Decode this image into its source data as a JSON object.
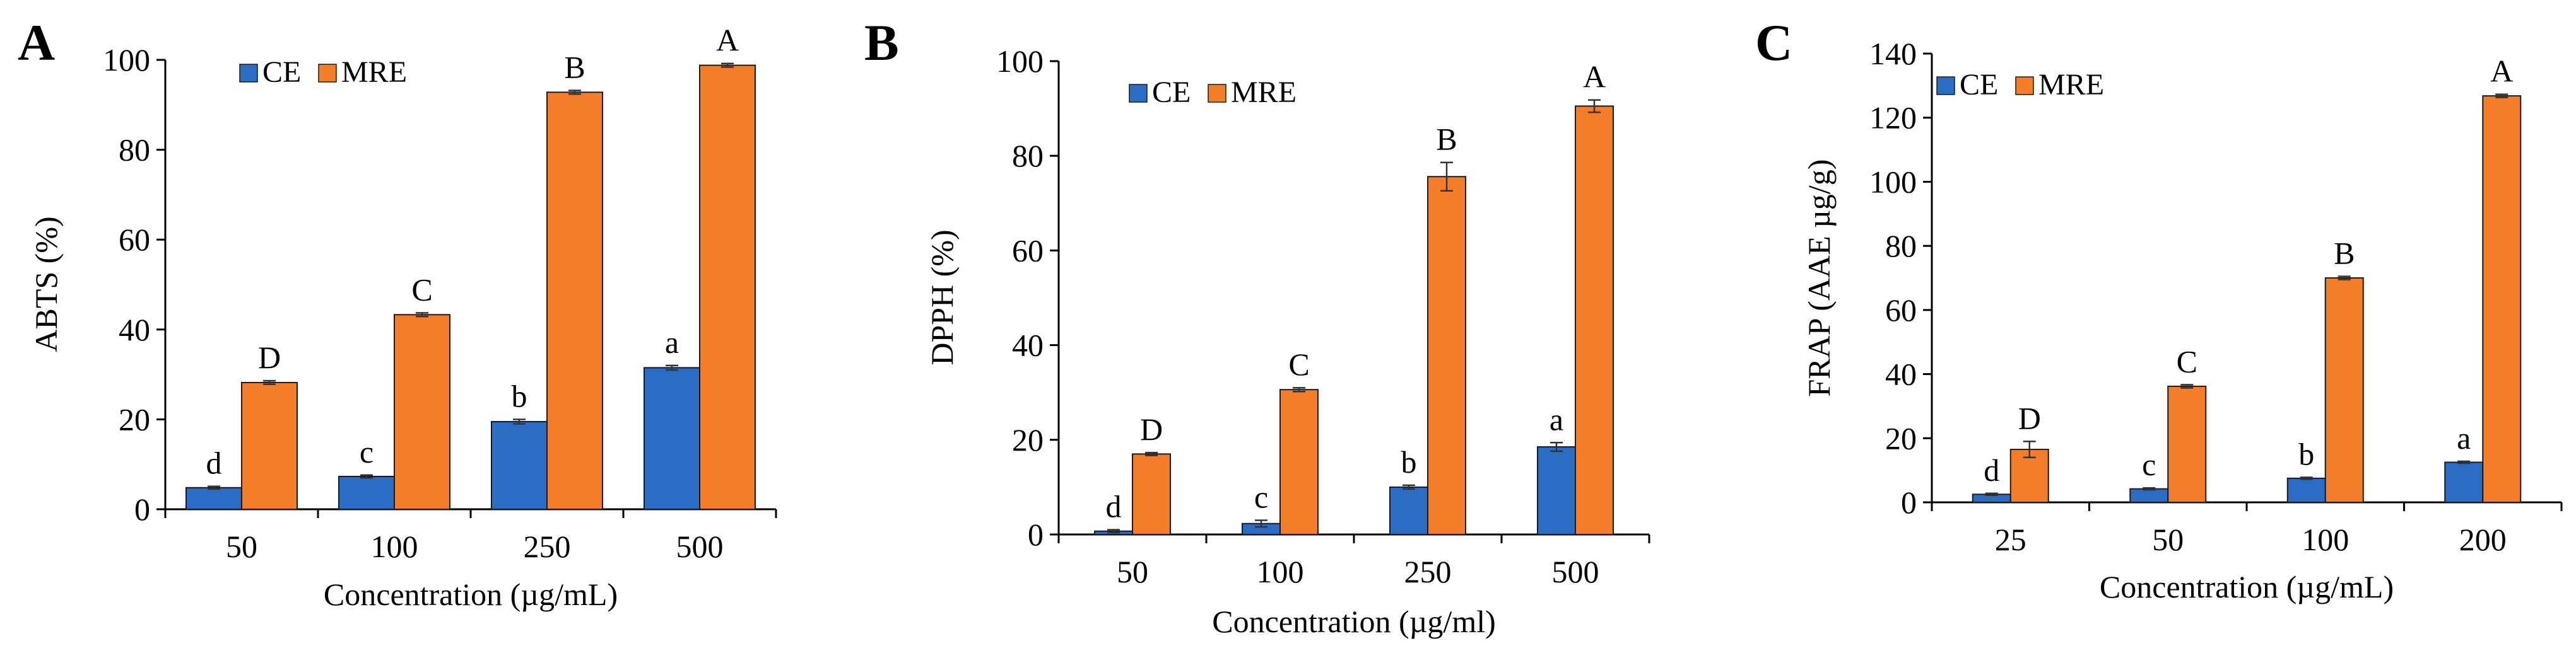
{
  "colors": {
    "CE": "#2b6cc4",
    "MRE": "#f47d29",
    "axis": "#000000"
  },
  "chart_data": [
    {
      "panel_label": "A",
      "type": "bar",
      "title": "",
      "ylabel": "ABTS (%)",
      "xlabel": "Concentration (µg/mL)",
      "ylim": [
        0,
        100
      ],
      "yticks": [
        0,
        20,
        40,
        60,
        80,
        100
      ],
      "categories": [
        "50",
        "100",
        "250",
        "500"
      ],
      "legend": [
        "CE",
        "MRE"
      ],
      "legend_position": "top-left",
      "series": [
        {
          "name": "CE",
          "values": [
            4.8,
            7.3,
            19.5,
            31.5
          ],
          "errors": [
            0.3,
            0.3,
            0.5,
            0.5
          ],
          "letters": [
            "d",
            "c",
            "b",
            "a"
          ]
        },
        {
          "name": "MRE",
          "values": [
            28.2,
            43.3,
            92.8,
            98.8
          ],
          "errors": [
            0.4,
            0.4,
            0.4,
            0.4
          ],
          "letters": [
            "D",
            "C",
            "B",
            "A"
          ]
        }
      ]
    },
    {
      "panel_label": "B",
      "type": "bar",
      "title": "",
      "ylabel": "DPPH (%)",
      "xlabel": "Concentration (µg/ml)",
      "ylim": [
        0,
        100
      ],
      "yticks": [
        0,
        20,
        40,
        60,
        80,
        100
      ],
      "categories": [
        "50",
        "100",
        "250",
        "500"
      ],
      "legend": [
        "CE",
        "MRE"
      ],
      "legend_position": "top-left",
      "series": [
        {
          "name": "CE",
          "values": [
            0.7,
            2.3,
            10.0,
            18.5
          ],
          "errors": [
            0.3,
            0.7,
            0.4,
            0.9
          ],
          "letters": [
            "d",
            "c",
            "b",
            "a"
          ]
        },
        {
          "name": "MRE",
          "values": [
            17.0,
            30.6,
            75.6,
            90.5
          ],
          "errors": [
            0.3,
            0.4,
            3.0,
            1.3
          ],
          "letters": [
            "D",
            "C",
            "B",
            "A"
          ]
        }
      ]
    },
    {
      "panel_label": "C",
      "type": "bar",
      "title": "",
      "ylabel": "FRAP (AAE µg/g)",
      "xlabel": "Concentration (µg/mL)",
      "ylim": [
        0,
        140
      ],
      "yticks": [
        0,
        20,
        40,
        60,
        80,
        100,
        120,
        140
      ],
      "categories": [
        "25",
        "50",
        "100",
        "200"
      ],
      "legend": [
        "CE",
        "MRE"
      ],
      "legend_position": "top-left",
      "series": [
        {
          "name": "CE",
          "values": [
            2.5,
            4.2,
            7.5,
            12.5
          ],
          "errors": [
            0.3,
            0.3,
            0.3,
            0.3
          ],
          "letters": [
            "d",
            "c",
            "b",
            "a"
          ]
        },
        {
          "name": "MRE",
          "values": [
            16.5,
            36.2,
            70.0,
            126.8
          ],
          "errors": [
            2.5,
            0.5,
            0.5,
            0.5
          ],
          "letters": [
            "D",
            "C",
            "B",
            "A"
          ]
        }
      ]
    }
  ]
}
